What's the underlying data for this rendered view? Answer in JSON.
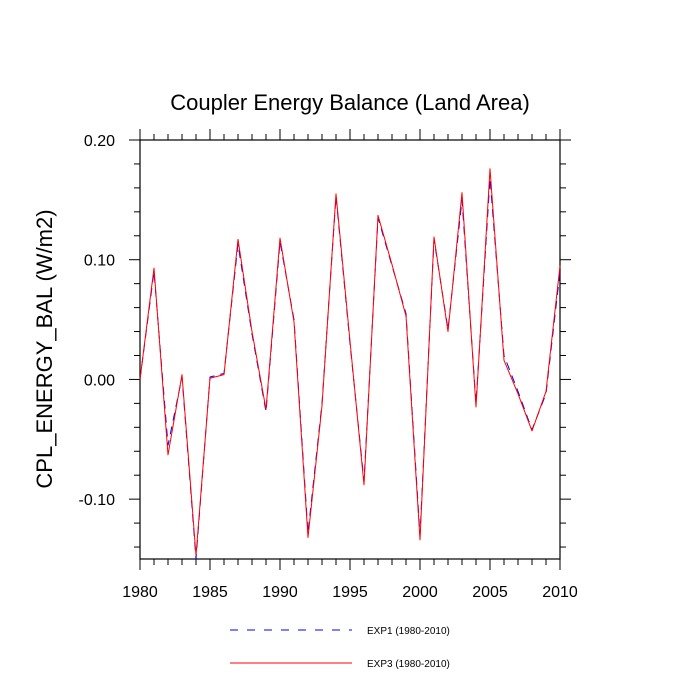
{
  "chart_data": {
    "type": "line",
    "title": "Coupler Energy Balance (Land Area)",
    "xlabel": "",
    "ylabel": "CPL_ENERGY_BAL  (W/m2)",
    "xlim": [
      1980,
      2010
    ],
    "ylim": [
      -0.15,
      0.2
    ],
    "x_ticks": [
      1980,
      1985,
      1990,
      1995,
      2000,
      2005,
      2010
    ],
    "x_tick_labels": [
      "1980",
      "1985",
      "1990",
      "1995",
      "2000",
      "2005",
      "2010"
    ],
    "y_ticks": [
      -0.1,
      0.0,
      0.1,
      0.2
    ],
    "y_tick_labels": [
      "-0.10",
      "0.00",
      "0.10",
      "0.20"
    ],
    "grid": false,
    "legend_position": "bottom",
    "x": [
      1980,
      1981,
      1982,
      1983,
      1984,
      1985,
      1986,
      1987,
      1988,
      1989,
      1990,
      1991,
      1992,
      1993,
      1994,
      1995,
      1996,
      1997,
      1998,
      1999,
      2000,
      2001,
      2002,
      2003,
      2004,
      2005,
      2006,
      2007,
      2008,
      2009,
      2010
    ],
    "series": [
      {
        "name": "EXP1 (1980-2010)",
        "color": "#0000ff",
        "dash": "dashed",
        "values": [
          0.0,
          0.09,
          -0.055,
          0.002,
          -0.15,
          0.002,
          0.005,
          0.113,
          0.038,
          -0.027,
          0.115,
          0.05,
          -0.128,
          -0.02,
          0.153,
          0.03,
          -0.085,
          0.135,
          0.095,
          0.055,
          -0.13,
          0.117,
          0.042,
          0.15,
          -0.02,
          0.168,
          0.02,
          -0.01,
          -0.042,
          -0.012,
          0.09
        ]
      },
      {
        "name": "EXP3 (1980-2010)",
        "color": "#ff0000",
        "dash": "solid",
        "values": [
          0.0,
          0.093,
          -0.063,
          0.004,
          -0.147,
          0.001,
          0.004,
          0.117,
          0.04,
          -0.025,
          0.118,
          0.048,
          -0.132,
          -0.022,
          0.155,
          0.032,
          -0.088,
          0.137,
          0.096,
          0.053,
          -0.134,
          0.119,
          0.04,
          0.156,
          -0.023,
          0.176,
          0.016,
          -0.012,
          -0.043,
          -0.01,
          0.095
        ]
      }
    ]
  }
}
